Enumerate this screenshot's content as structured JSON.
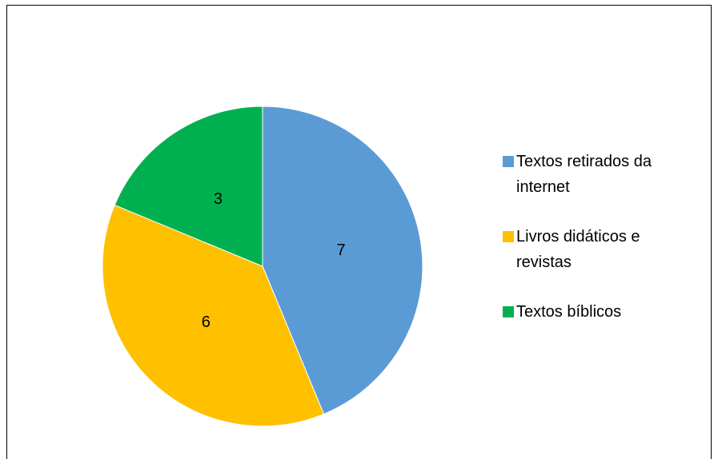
{
  "chart_data": {
    "type": "pie",
    "categories": [
      "Textos retirados da internet",
      "Livros didáticos e revistas",
      "Textos bíblicos"
    ],
    "values": [
      7,
      6,
      3
    ],
    "colors": [
      "#5b9bd5",
      "#ffc000",
      "#00b050"
    ],
    "legend": "right"
  }
}
